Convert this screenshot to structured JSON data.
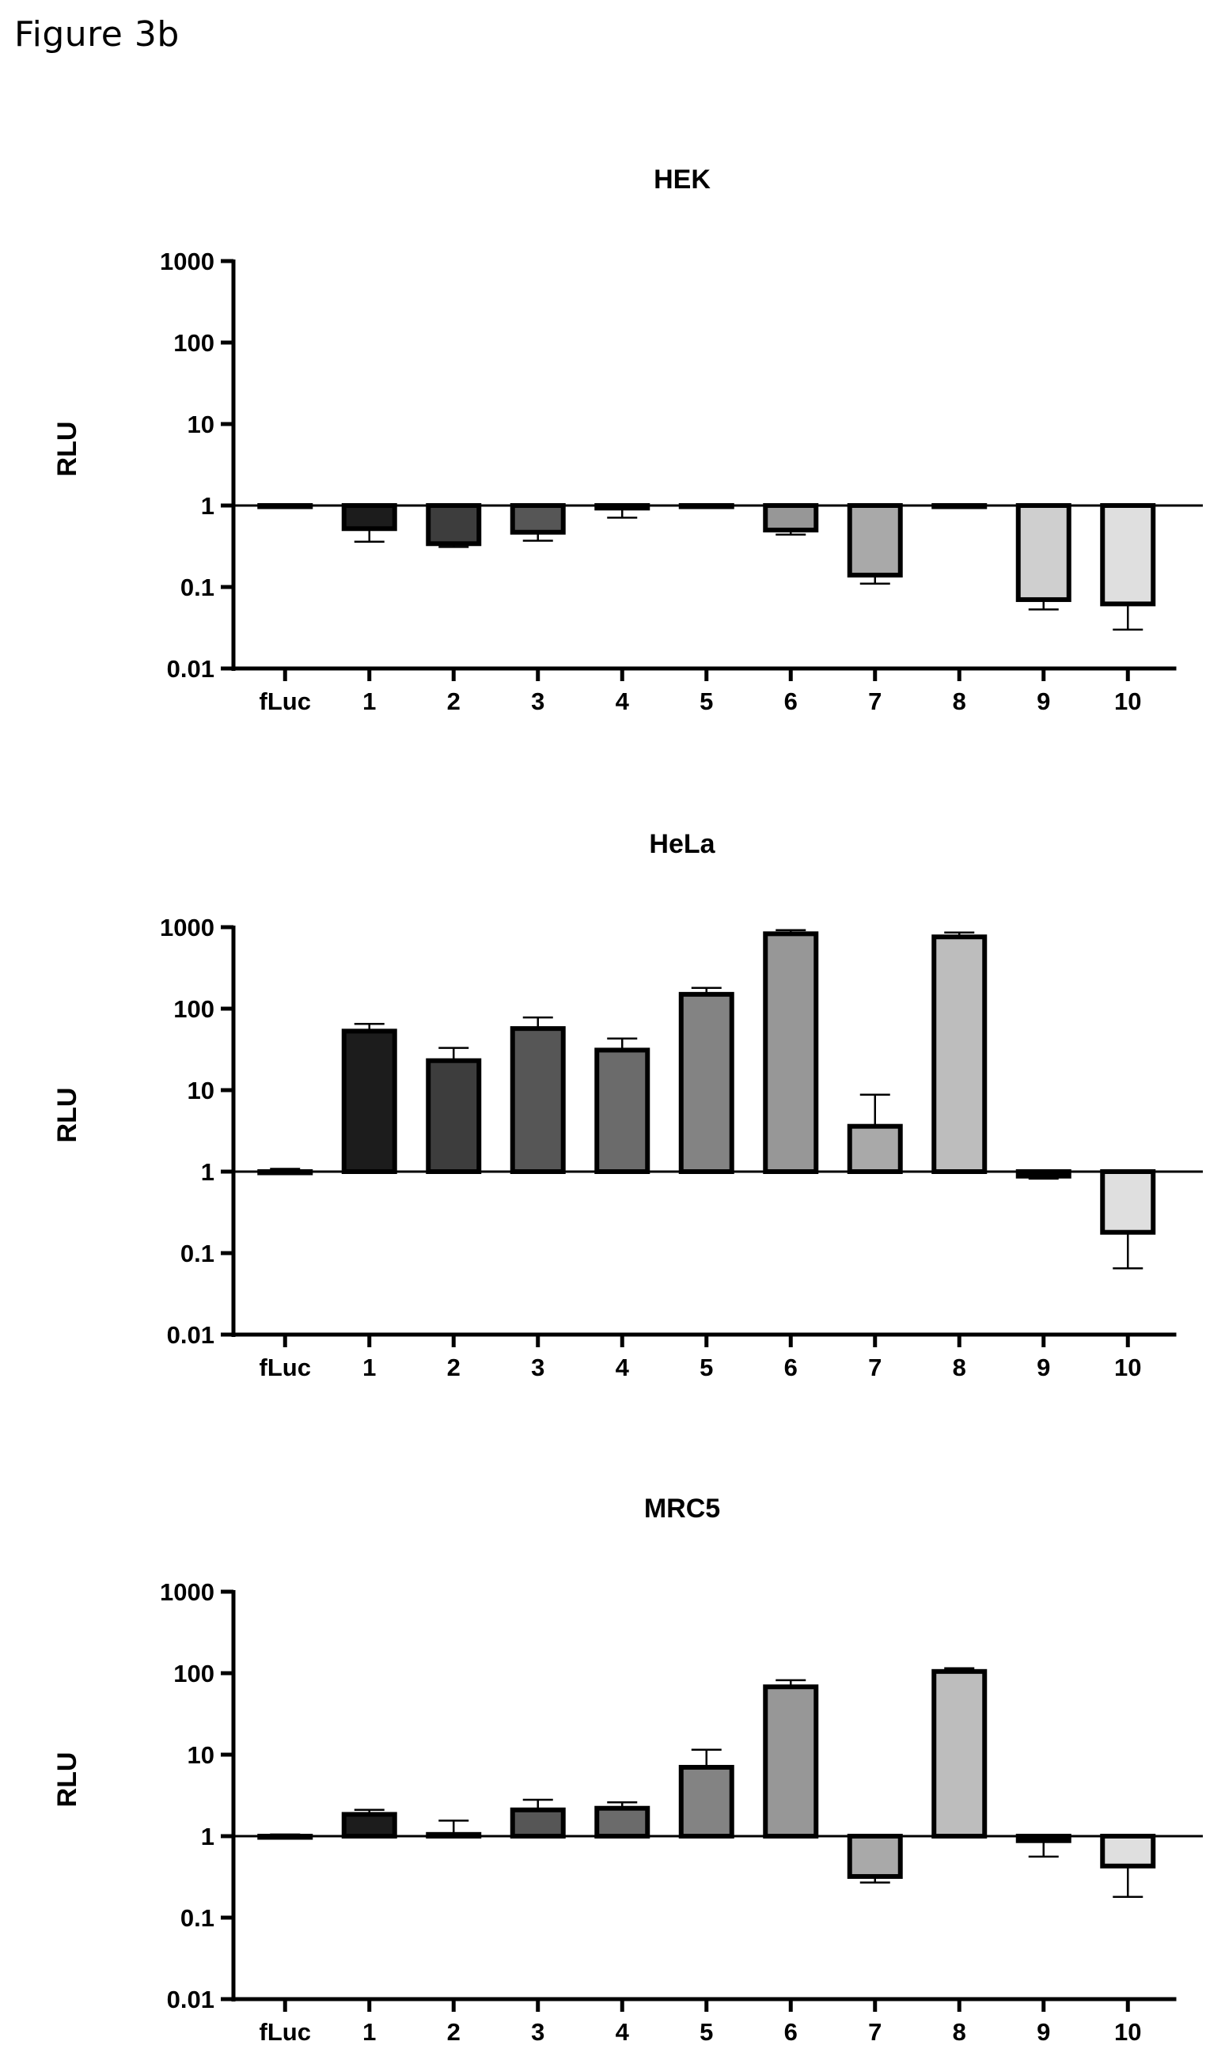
{
  "figure_title": "Figure 3b",
  "chart_data": [
    {
      "type": "bar",
      "title": "HEK",
      "ylabel": "RLU",
      "xlabel": "",
      "yscale": "log",
      "ylim": [
        0.01,
        1000
      ],
      "yticks": [
        "1000",
        "100",
        "10",
        "1",
        "0.1",
        "0.01"
      ],
      "baseline": 1,
      "categories": [
        "fLuc",
        "1",
        "2",
        "3",
        "4",
        "5",
        "6",
        "7",
        "8",
        "9",
        "10"
      ],
      "values": [
        1.0,
        0.52,
        0.34,
        0.47,
        0.93,
        0.98,
        0.5,
        0.14,
        1.0,
        0.07,
        0.062
      ],
      "error": [
        null,
        0.36,
        0.31,
        0.37,
        0.71,
        null,
        0.44,
        0.11,
        null,
        0.053,
        0.03
      ],
      "grid": false
    },
    {
      "type": "bar",
      "title": "HeLa",
      "ylabel": "RLU",
      "xlabel": "",
      "yscale": "log",
      "ylim": [
        0.01,
        1000
      ],
      "yticks": [
        "1000",
        "100",
        "10",
        "1",
        "0.1",
        "0.01"
      ],
      "baseline": 1,
      "categories": [
        "fLuc",
        "1",
        "2",
        "3",
        "4",
        "5",
        "6",
        "7",
        "8",
        "9",
        "10"
      ],
      "values": [
        1.0,
        53,
        23,
        57,
        31,
        150,
        830,
        3.6,
        760,
        0.88,
        0.18
      ],
      "error": [
        1.08,
        65,
        33,
        78,
        43,
        180,
        920,
        8.8,
        860,
        0.82,
        0.065
      ],
      "grid": false
    },
    {
      "type": "bar",
      "title": "MRC5",
      "ylabel": "RLU",
      "xlabel": "",
      "yscale": "log",
      "ylim": [
        0.01,
        1000
      ],
      "yticks": [
        "1000",
        "100",
        "10",
        "1",
        "0.1",
        "0.01"
      ],
      "baseline": 1,
      "categories": [
        "fLuc",
        "1",
        "2",
        "3",
        "4",
        "5",
        "6",
        "7",
        "8",
        "9",
        "10"
      ],
      "values": [
        1.0,
        1.85,
        1.05,
        2.1,
        2.2,
        7.0,
        68,
        0.32,
        105,
        0.88,
        0.43
      ],
      "error": [
        1.05,
        2.1,
        1.55,
        2.8,
        2.6,
        11.5,
        82,
        0.27,
        115,
        0.56,
        0.18
      ],
      "grid": false
    }
  ],
  "colors": {
    "axis": "#000000",
    "bar_stroke": "#000000",
    "bar_fills": [
      "#ffffff",
      "#1c1c1c",
      "#3d3d3d",
      "#565656",
      "#6b6b6b",
      "#838383",
      "#979797",
      "#a9a9a9",
      "#bdbdbd",
      "#cfcfcf",
      "#dfdfdf"
    ]
  }
}
